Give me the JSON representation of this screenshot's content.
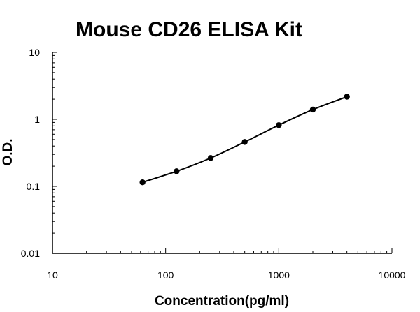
{
  "chart_data": {
    "type": "scatter",
    "title": "Mouse CD26 ELISA Kit",
    "xlabel": "Concentration(pg/ml)",
    "ylabel": "O.D.",
    "x_scale": "log",
    "y_scale": "log",
    "xlim": [
      10,
      10000
    ],
    "ylim": [
      0.01,
      10
    ],
    "x_ticks": [
      "10",
      "100",
      "1000",
      "10000"
    ],
    "y_ticks": [
      "0.01",
      "0.1",
      "1",
      "10"
    ],
    "grid": false,
    "legend": "none",
    "series": [
      {
        "x": [
          62.5,
          125,
          250,
          500,
          1000,
          2000,
          4000
        ],
        "y": [
          0.115,
          0.168,
          0.265,
          0.46,
          0.82,
          1.4,
          2.18
        ],
        "marker": "circle",
        "fit_line": true,
        "color": "#000000"
      }
    ]
  }
}
